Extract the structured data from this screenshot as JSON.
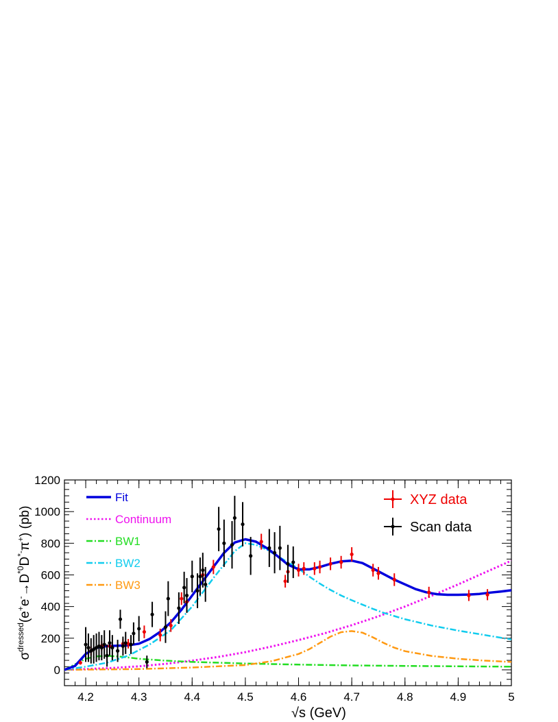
{
  "chart_data": {
    "type": "scatter",
    "ylabel_parts": {
      "sigma": "σ",
      "superscript": "dressed",
      "process_open": "(e",
      "eplus_sup": "+",
      "e2": "e",
      "eminus_sup": "-",
      "arrow": "→D",
      "dstar0_sup": "*0",
      "d2": "D",
      "dstarminus_sup": "*-",
      "pi": "π",
      "piplus_sup": "+",
      "close_unit": ") (pb)"
    },
    "xlabel_parts": {
      "root": "√",
      "s": "s",
      "unit": " (GeV)"
    },
    "xlim": [
      4.16,
      5.0
    ],
    "ylim": [
      -100,
      1200
    ],
    "x_ticks": [
      4.2,
      4.3,
      4.4,
      4.5,
      4.6,
      4.7,
      4.8,
      4.9,
      5.0
    ],
    "x_tick_labels": [
      "4.2",
      "4.3",
      "4.4",
      "4.5",
      "4.6",
      "4.7",
      "4.8",
      "4.9",
      "5"
    ],
    "y_ticks": [
      0,
      200,
      400,
      600,
      800,
      1000,
      1200
    ],
    "y_tick_labels": [
      "0",
      "200",
      "400",
      "600",
      "800",
      "1000",
      "1200"
    ],
    "grid": false,
    "legend_left": {
      "placement": "top-left",
      "entries": [
        {
          "label": "Fit",
          "color": "#0000dd",
          "style": "solid"
        },
        {
          "label": "Continuum",
          "color": "#ee11ee",
          "style": "dotted"
        },
        {
          "label": "BW1",
          "color": "#22dd22",
          "style": "dashdot"
        },
        {
          "label": "BW2",
          "color": "#11ccee",
          "style": "dashdot"
        },
        {
          "label": "BW3",
          "color": "#ff9911",
          "style": "dashdot"
        }
      ]
    },
    "legend_right": {
      "placement": "top-right",
      "entries": [
        {
          "label": "XYZ data",
          "color": "#ee0000"
        },
        {
          "label": "Scan data",
          "color": "#000000"
        }
      ]
    },
    "curves": {
      "fit": {
        "color": "#0000dd",
        "x": [
          4.16,
          4.18,
          4.2,
          4.22,
          4.24,
          4.26,
          4.28,
          4.3,
          4.32,
          4.34,
          4.36,
          4.38,
          4.4,
          4.42,
          4.44,
          4.46,
          4.48,
          4.5,
          4.52,
          4.54,
          4.56,
          4.58,
          4.6,
          4.62,
          4.64,
          4.66,
          4.68,
          4.7,
          4.72,
          4.74,
          4.76,
          4.78,
          4.8,
          4.82,
          4.84,
          4.86,
          4.88,
          4.9,
          4.92,
          4.94,
          4.96,
          4.98,
          5.0
        ],
        "y": [
          0,
          25,
          100,
          140,
          150,
          152,
          155,
          165,
          195,
          240,
          300,
          380,
          470,
          560,
          650,
          740,
          805,
          825,
          810,
          770,
          720,
          665,
          635,
          635,
          650,
          670,
          685,
          690,
          675,
          640,
          605,
          570,
          540,
          510,
          490,
          478,
          474,
          474,
          476,
          480,
          488,
          495,
          503
        ]
      },
      "continuum": {
        "color": "#ee11ee",
        "x": [
          4.16,
          4.2,
          4.25,
          4.3,
          4.35,
          4.4,
          4.45,
          4.5,
          4.55,
          4.6,
          4.65,
          4.7,
          4.75,
          4.8,
          4.85,
          4.9,
          4.95,
          5.0
        ],
        "y": [
          0,
          5,
          12,
          22,
          38,
          58,
          82,
          112,
          148,
          188,
          232,
          282,
          338,
          400,
          468,
          540,
          615,
          690
        ]
      },
      "bw1": {
        "color": "#22dd22",
        "x": [
          4.16,
          4.18,
          4.2,
          4.22,
          4.24,
          4.26,
          4.28,
          4.3,
          4.35,
          4.4,
          4.5,
          4.6,
          4.7,
          4.8,
          4.9,
          5.0
        ],
        "y": [
          0,
          35,
          70,
          85,
          88,
          85,
          78,
          70,
          58,
          50,
          40,
          33,
          28,
          25,
          22,
          20
        ]
      },
      "bw2": {
        "color": "#11ccee",
        "x": [
          4.16,
          4.2,
          4.24,
          4.28,
          4.32,
          4.36,
          4.4,
          4.44,
          4.48,
          4.5,
          4.52,
          4.54,
          4.56,
          4.58,
          4.6,
          4.62,
          4.64,
          4.66,
          4.68,
          4.7,
          4.72,
          4.74,
          4.76,
          4.78,
          4.8,
          4.85,
          4.9,
          4.95,
          5.0
        ],
        "y": [
          0,
          20,
          45,
          90,
          160,
          250,
          400,
          580,
          750,
          800,
          790,
          760,
          720,
          680,
          640,
          590,
          545,
          505,
          470,
          440,
          412,
          385,
          360,
          340,
          320,
          280,
          248,
          220,
          192
        ]
      },
      "bw3": {
        "color": "#ff9911",
        "x": [
          4.16,
          4.3,
          4.4,
          4.5,
          4.55,
          4.6,
          4.62,
          4.64,
          4.66,
          4.68,
          4.7,
          4.72,
          4.74,
          4.76,
          4.78,
          4.8,
          4.85,
          4.9,
          4.95,
          5.0
        ],
        "y": [
          0,
          5,
          15,
          30,
          55,
          100,
          130,
          170,
          210,
          238,
          245,
          235,
          205,
          170,
          140,
          118,
          88,
          70,
          58,
          50
        ]
      }
    },
    "series": [
      {
        "name": "XYZ data",
        "color": "#ee0000",
        "points": [
          [
            4.19,
            45,
            12
          ],
          [
            4.21,
            120,
            30
          ],
          [
            4.23,
            150,
            30
          ],
          [
            4.245,
            150,
            30
          ],
          [
            4.27,
            165,
            30
          ],
          [
            4.28,
            165,
            30
          ],
          [
            4.31,
            240,
            40
          ],
          [
            4.34,
            220,
            40
          ],
          [
            4.36,
            280,
            40
          ],
          [
            4.38,
            450,
            40
          ],
          [
            4.39,
            430,
            40
          ],
          [
            4.42,
            600,
            45
          ],
          [
            4.44,
            650,
            45
          ],
          [
            4.53,
            810,
            50
          ],
          [
            4.575,
            560,
            40
          ],
          [
            4.58,
            620,
            45
          ],
          [
            4.6,
            630,
            40
          ],
          [
            4.61,
            640,
            40
          ],
          [
            4.63,
            640,
            40
          ],
          [
            4.64,
            650,
            40
          ],
          [
            4.66,
            670,
            40
          ],
          [
            4.68,
            680,
            40
          ],
          [
            4.7,
            730,
            45
          ],
          [
            4.74,
            630,
            40
          ],
          [
            4.75,
            610,
            40
          ],
          [
            4.78,
            570,
            40
          ],
          [
            4.845,
            490,
            35
          ],
          [
            4.92,
            470,
            35
          ],
          [
            4.955,
            475,
            35
          ]
        ]
      },
      {
        "name": "Scan data",
        "color": "#000000",
        "points": [
          [
            4.2,
            160,
            110
          ],
          [
            4.205,
            140,
            90
          ],
          [
            4.21,
            120,
            80
          ],
          [
            4.215,
            130,
            90
          ],
          [
            4.22,
            140,
            90
          ],
          [
            4.225,
            150,
            90
          ],
          [
            4.23,
            140,
            80
          ],
          [
            4.235,
            160,
            90
          ],
          [
            4.24,
            90,
            70
          ],
          [
            4.245,
            170,
            80
          ],
          [
            4.25,
            140,
            80
          ],
          [
            4.26,
            120,
            70
          ],
          [
            4.265,
            320,
            60
          ],
          [
            4.27,
            150,
            60
          ],
          [
            4.275,
            170,
            70
          ],
          [
            4.285,
            160,
            60
          ],
          [
            4.29,
            230,
            70
          ],
          [
            4.3,
            260,
            80
          ],
          [
            4.315,
            50,
            40
          ],
          [
            4.325,
            350,
            80
          ],
          [
            4.35,
            270,
            100
          ],
          [
            4.355,
            450,
            110
          ],
          [
            4.375,
            390,
            100
          ],
          [
            4.385,
            520,
            100
          ],
          [
            4.39,
            470,
            110
          ],
          [
            4.4,
            590,
            100
          ],
          [
            4.41,
            500,
            110
          ],
          [
            4.415,
            590,
            120
          ],
          [
            4.42,
            630,
            110
          ],
          [
            4.425,
            540,
            110
          ],
          [
            4.45,
            890,
            140
          ],
          [
            4.46,
            800,
            150
          ],
          [
            4.475,
            790,
            150
          ],
          [
            4.48,
            960,
            140
          ],
          [
            4.495,
            920,
            140
          ],
          [
            4.51,
            720,
            120
          ],
          [
            4.545,
            770,
            120
          ],
          [
            4.555,
            740,
            130
          ],
          [
            4.565,
            770,
            140
          ],
          [
            4.58,
            670,
            120
          ],
          [
            4.59,
            680,
            100
          ]
        ]
      }
    ]
  }
}
